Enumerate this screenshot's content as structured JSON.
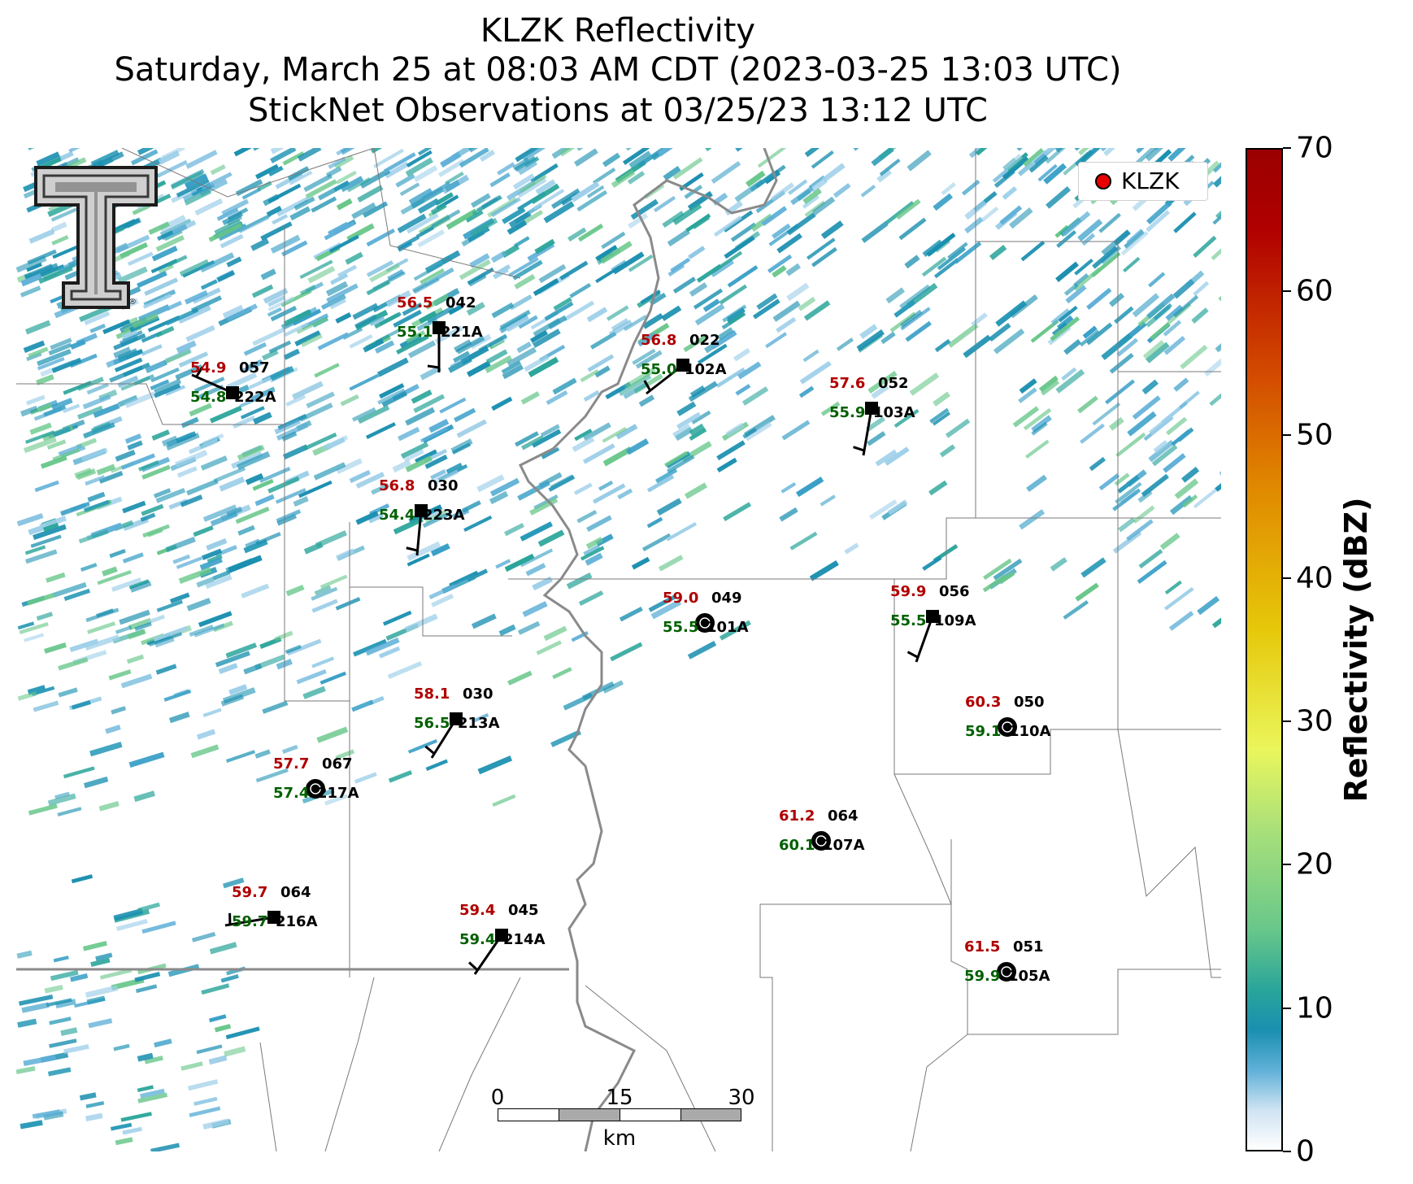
{
  "title": {
    "line1": "KLZK Reflectivity",
    "line2": "Saturday, March 25 at 08:03 AM CDT (2023-03-25 13:03 UTC)",
    "line3": "StickNet Observations at 03/25/23 13:12 UTC"
  },
  "legend": {
    "label": "KLZK",
    "marker_color": "#e80000"
  },
  "logo": {
    "name": "texas-tech-double-t-logo",
    "mark": "®"
  },
  "colorbar": {
    "label": "Reflectivity (dBZ)",
    "ticks": [
      "0",
      "10",
      "20",
      "30",
      "40",
      "50",
      "60",
      "70"
    ],
    "range": [
      0,
      70
    ]
  },
  "scalebar": {
    "ticks": [
      "0",
      "15",
      "30"
    ],
    "unit": "km"
  },
  "stations": [
    {
      "id": "222A",
      "temp": "54.9",
      "dew": "54.8",
      "dir": "057",
      "marker": "square"
    },
    {
      "id": "221A",
      "temp": "56.5",
      "dew": "55.1",
      "dir": "042",
      "marker": "square"
    },
    {
      "id": "102A",
      "temp": "56.8",
      "dew": "55.0",
      "dir": "022",
      "marker": "square"
    },
    {
      "id": "103A",
      "temp": "57.6",
      "dew": "55.9",
      "dir": "052",
      "marker": "square"
    },
    {
      "id": "223A",
      "temp": "56.8",
      "dew": "54.4",
      "dir": "030",
      "marker": "square"
    },
    {
      "id": "101A",
      "temp": "59.0",
      "dew": "55.5",
      "dir": "049",
      "marker": "circle"
    },
    {
      "id": "109A",
      "temp": "59.9",
      "dew": "55.5",
      "dir": "056",
      "marker": "square"
    },
    {
      "id": "213A",
      "temp": "58.1",
      "dew": "56.5",
      "dir": "030",
      "marker": "square"
    },
    {
      "id": "110A",
      "temp": "60.3",
      "dew": "59.1",
      "dir": "050",
      "marker": "circle"
    },
    {
      "id": "217A",
      "temp": "57.7",
      "dew": "57.4",
      "dir": "067",
      "marker": "circle"
    },
    {
      "id": "107A",
      "temp": "61.2",
      "dew": "60.1",
      "dir": "064",
      "marker": "circle"
    },
    {
      "id": "216A",
      "temp": "59.7",
      "dew": "59.7",
      "dir": "064",
      "marker": "square"
    },
    {
      "id": "214A",
      "temp": "59.4",
      "dew": "59.4",
      "dir": "045",
      "marker": "square"
    },
    {
      "id": "105A",
      "temp": "61.5",
      "dew": "59.9",
      "dir": "051",
      "marker": "circle"
    }
  ],
  "colors": {
    "temp": "#b00000",
    "dew": "#006000",
    "radar_core": "#1a8fb0"
  }
}
